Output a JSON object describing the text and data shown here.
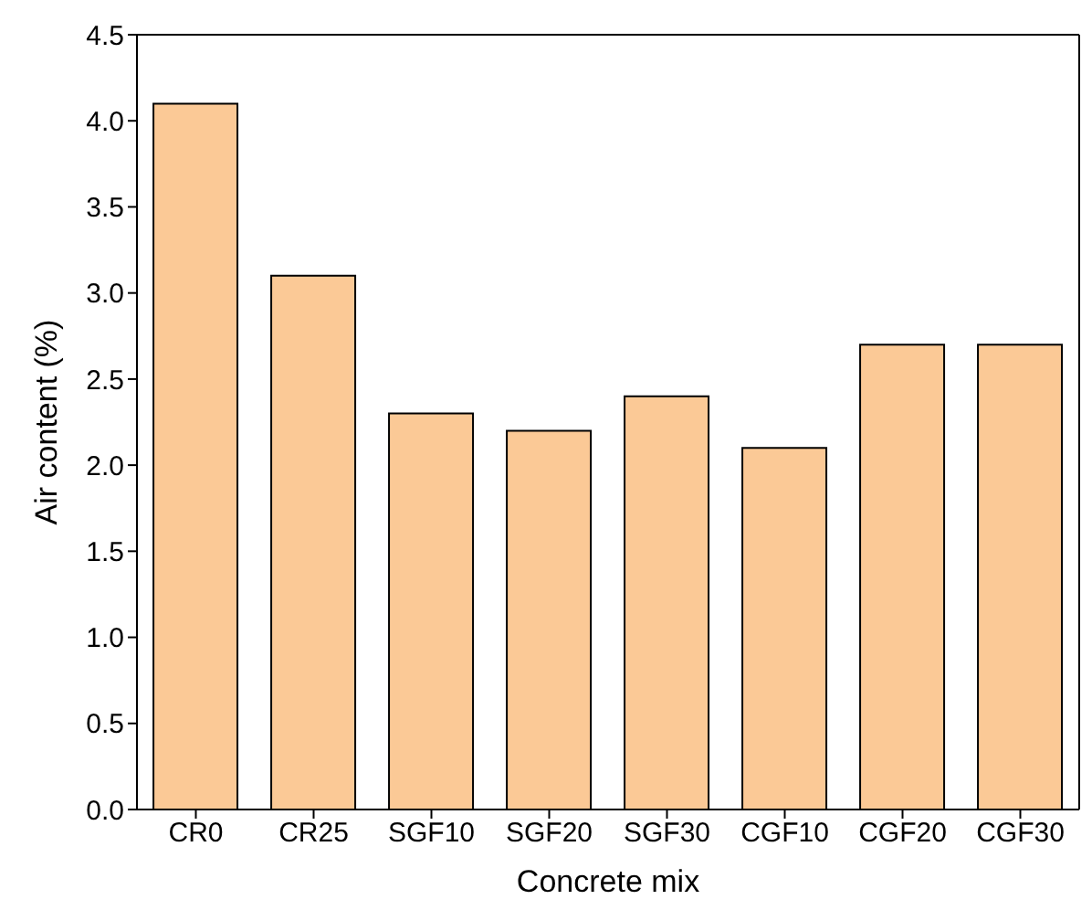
{
  "chart_data": {
    "type": "bar",
    "xlabel": "Concrete mix",
    "ylabel": "Air content (%)",
    "categories": [
      "CR0",
      "CR25",
      "SGF10",
      "SGF20",
      "SGF30",
      "CGF10",
      "CGF20",
      "CGF30"
    ],
    "values": [
      4.1,
      3.1,
      2.3,
      2.2,
      2.4,
      2.1,
      2.7,
      2.7
    ],
    "color": "#fbc996",
    "ylim": [
      0,
      4.5
    ],
    "yticks": [
      {
        "value": 0,
        "label": "0.0"
      },
      0.5,
      {
        "value": 1,
        "label": "1.0"
      },
      1.5,
      {
        "value": 2,
        "label": "2.0"
      },
      2.5,
      {
        "value": 3,
        "label": "3.0"
      },
      3.5,
      {
        "value": 4,
        "label": "4.0"
      },
      4.5
    ],
    "grid": false
  }
}
